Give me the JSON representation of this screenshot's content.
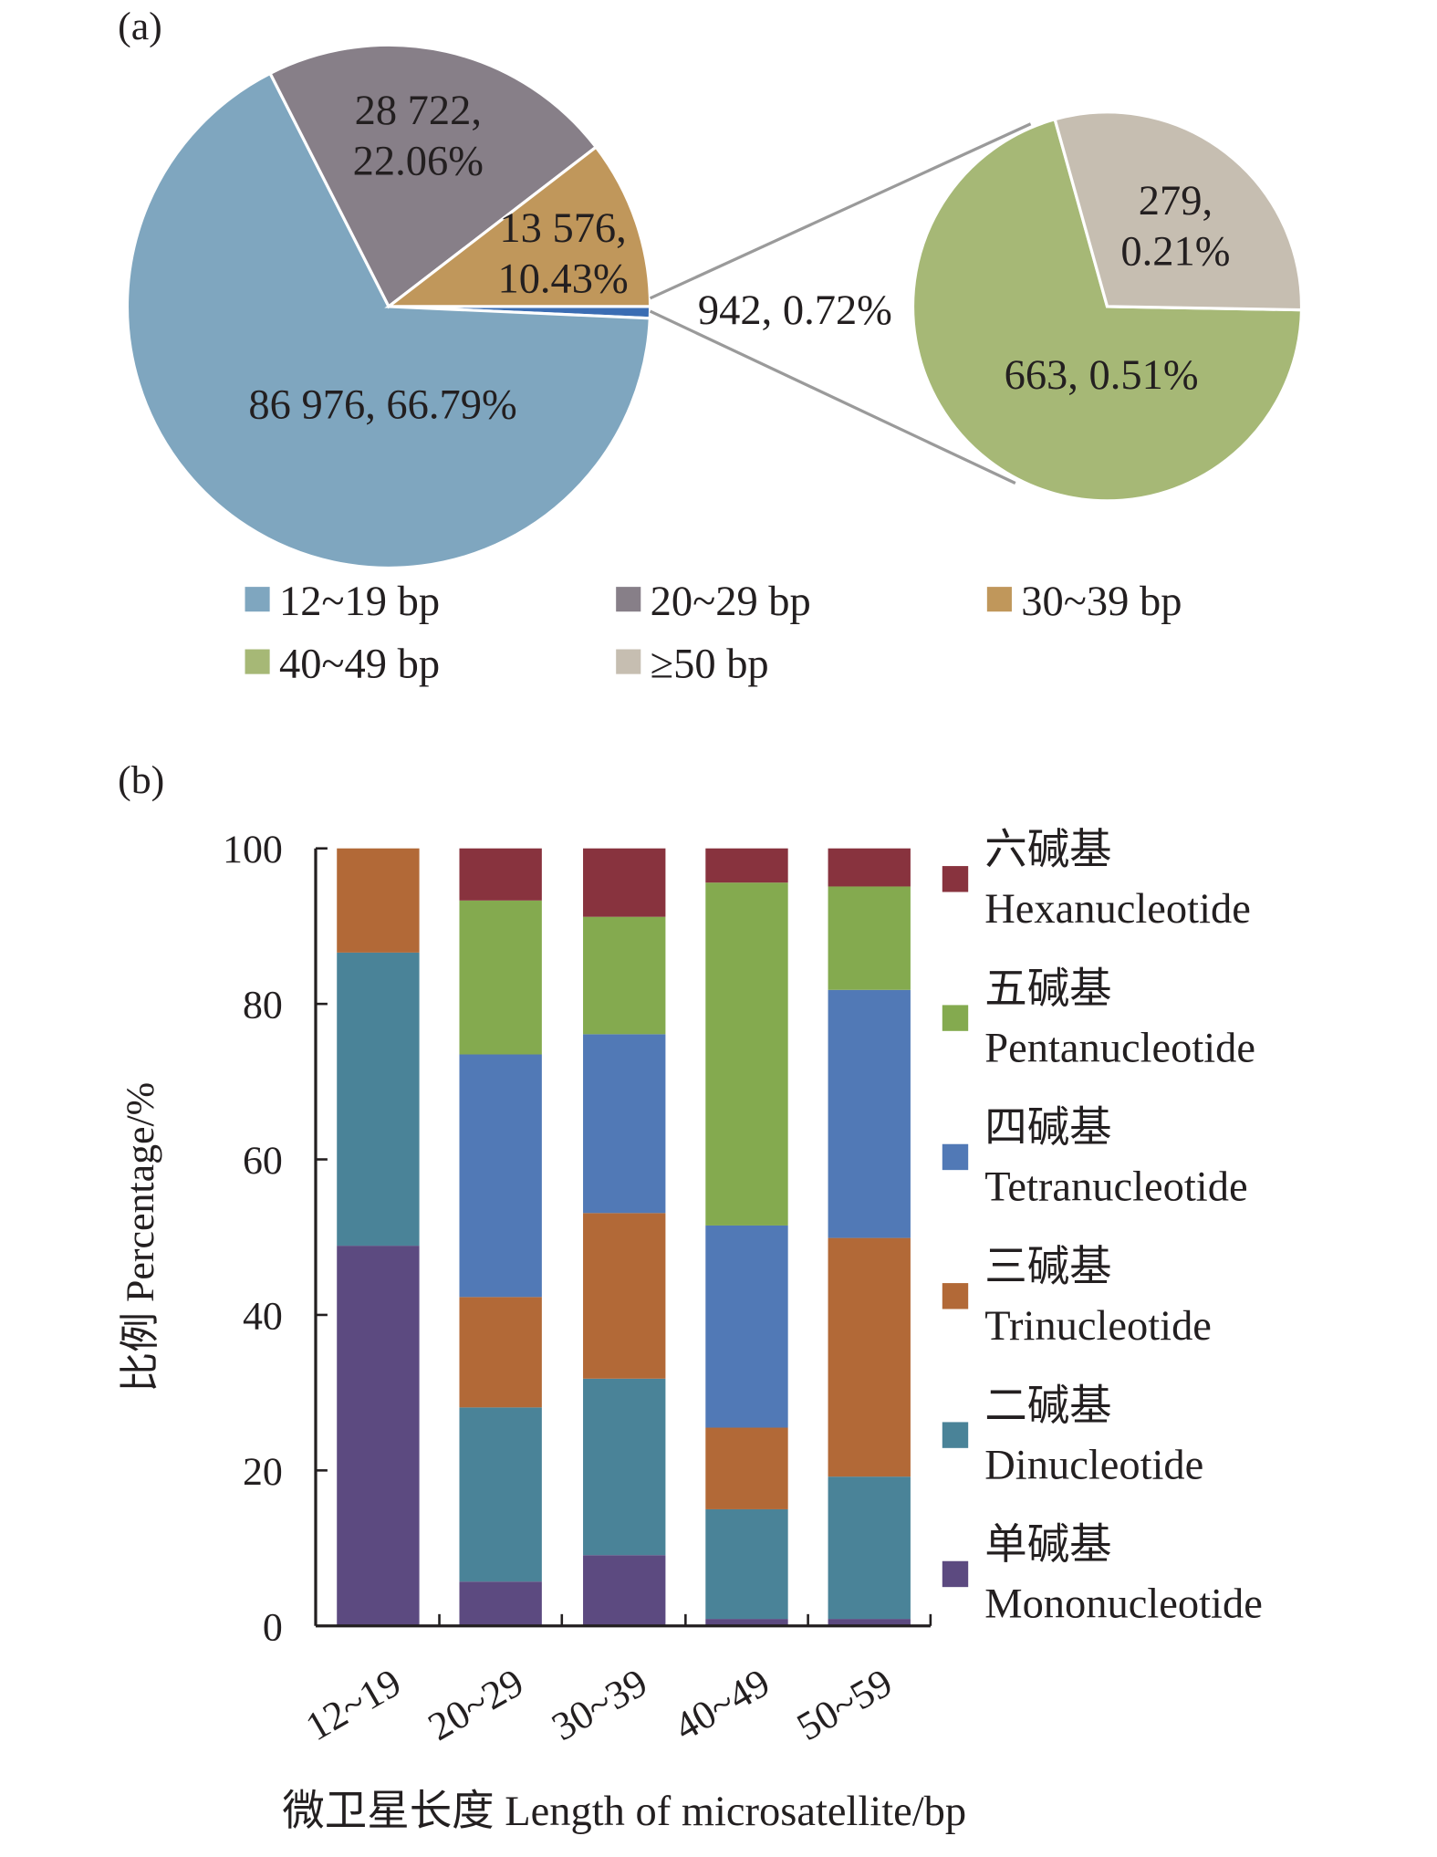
{
  "chart_data": [
    {
      "panel_label": "(a)",
      "type": "pie",
      "subtype": "pie-of-pie",
      "main_pie": [
        {
          "category": "12~19 bp",
          "count": 86976,
          "percent": 66.79,
          "label": "86 976, 66.79%",
          "color": "#7fa6bf"
        },
        {
          "category": "20~29 bp",
          "count": 28722,
          "percent": 22.06,
          "label": [
            "28 722,",
            "22.06%"
          ],
          "color": "#877f88"
        },
        {
          "category": "30~39 bp",
          "count": 13576,
          "percent": 10.43,
          "label": [
            "13 576,",
            "10.43%"
          ],
          "color": "#c0975b"
        },
        {
          "category": "other",
          "count": 942,
          "percent": 0.72,
          "label": "942, 0.72%",
          "color": "#3b6db3"
        }
      ],
      "secondary_pie": [
        {
          "category": "40~49 bp",
          "count": 663,
          "percent": 0.51,
          "label": "663, 0.51%",
          "color": "#a6b876"
        },
        {
          "category": "≥50 bp",
          "count": 279,
          "percent": 0.21,
          "label": [
            "279,",
            "0.21%"
          ],
          "color": "#c6beb1"
        }
      ],
      "legend": [
        "12~19 bp",
        "20~29 bp",
        "30~39 bp",
        "40~49 bp",
        "≥50 bp"
      ],
      "legend_colors": [
        "#7fa6bf",
        "#877f88",
        "#c0975b",
        "#a6b876",
        "#c6beb1"
      ],
      "legend_placement": "bottom"
    },
    {
      "panel_label": "(b)",
      "type": "bar",
      "subtype": "stacked-100",
      "categories": [
        "12~19",
        "20~29",
        "30~39",
        "40~49",
        "50~59"
      ],
      "series": [
        {
          "name": "单碱基 Mononucleotide",
          "name_cn": "单碱基",
          "name_en": "Mononucleotide",
          "color": "#5c4a80",
          "values": [
            48.9,
            5.7,
            9.1,
            0.9,
            0.9
          ]
        },
        {
          "name": "二碱基 Dinucleotide",
          "name_cn": "二碱基",
          "name_en": "Dinucleotide",
          "color": "#4a8398",
          "values": [
            37.7,
            22.4,
            22.7,
            14.1,
            18.3
          ]
        },
        {
          "name": "三碱基 Trinucleotide",
          "name_cn": "三碱基",
          "name_en": "Trinucleotide",
          "color": "#b26937",
          "values": [
            13.4,
            14.2,
            21.3,
            10.5,
            30.7
          ]
        },
        {
          "name": "四碱基 Tetranucleotide",
          "name_cn": "四碱基",
          "name_en": "Tetranucleotide",
          "color": "#5179b6",
          "values": [
            0,
            31.2,
            23.0,
            26.0,
            31.9
          ]
        },
        {
          "name": "五碱基 Pentanucleotide",
          "name_cn": "五碱基",
          "name_en": "Pentanucleotide",
          "color": "#84aa4f",
          "values": [
            0,
            19.8,
            15.1,
            44.1,
            13.3
          ]
        },
        {
          "name": "六碱基 Hexanucleotide",
          "name_cn": "六碱基",
          "name_en": "Hexanucleotide",
          "color": "#88333e",
          "values": [
            0,
            6.7,
            8.8,
            4.4,
            4.9
          ]
        }
      ],
      "xlabel": "微卫星长度 Length of microsatellite/bp",
      "ylabel": "比例 Percentage/%",
      "ylim": [
        0,
        100
      ],
      "yticks": [
        "0",
        "20",
        "40",
        "60",
        "80",
        "100"
      ],
      "grid": false,
      "legend_placement": "right"
    }
  ]
}
